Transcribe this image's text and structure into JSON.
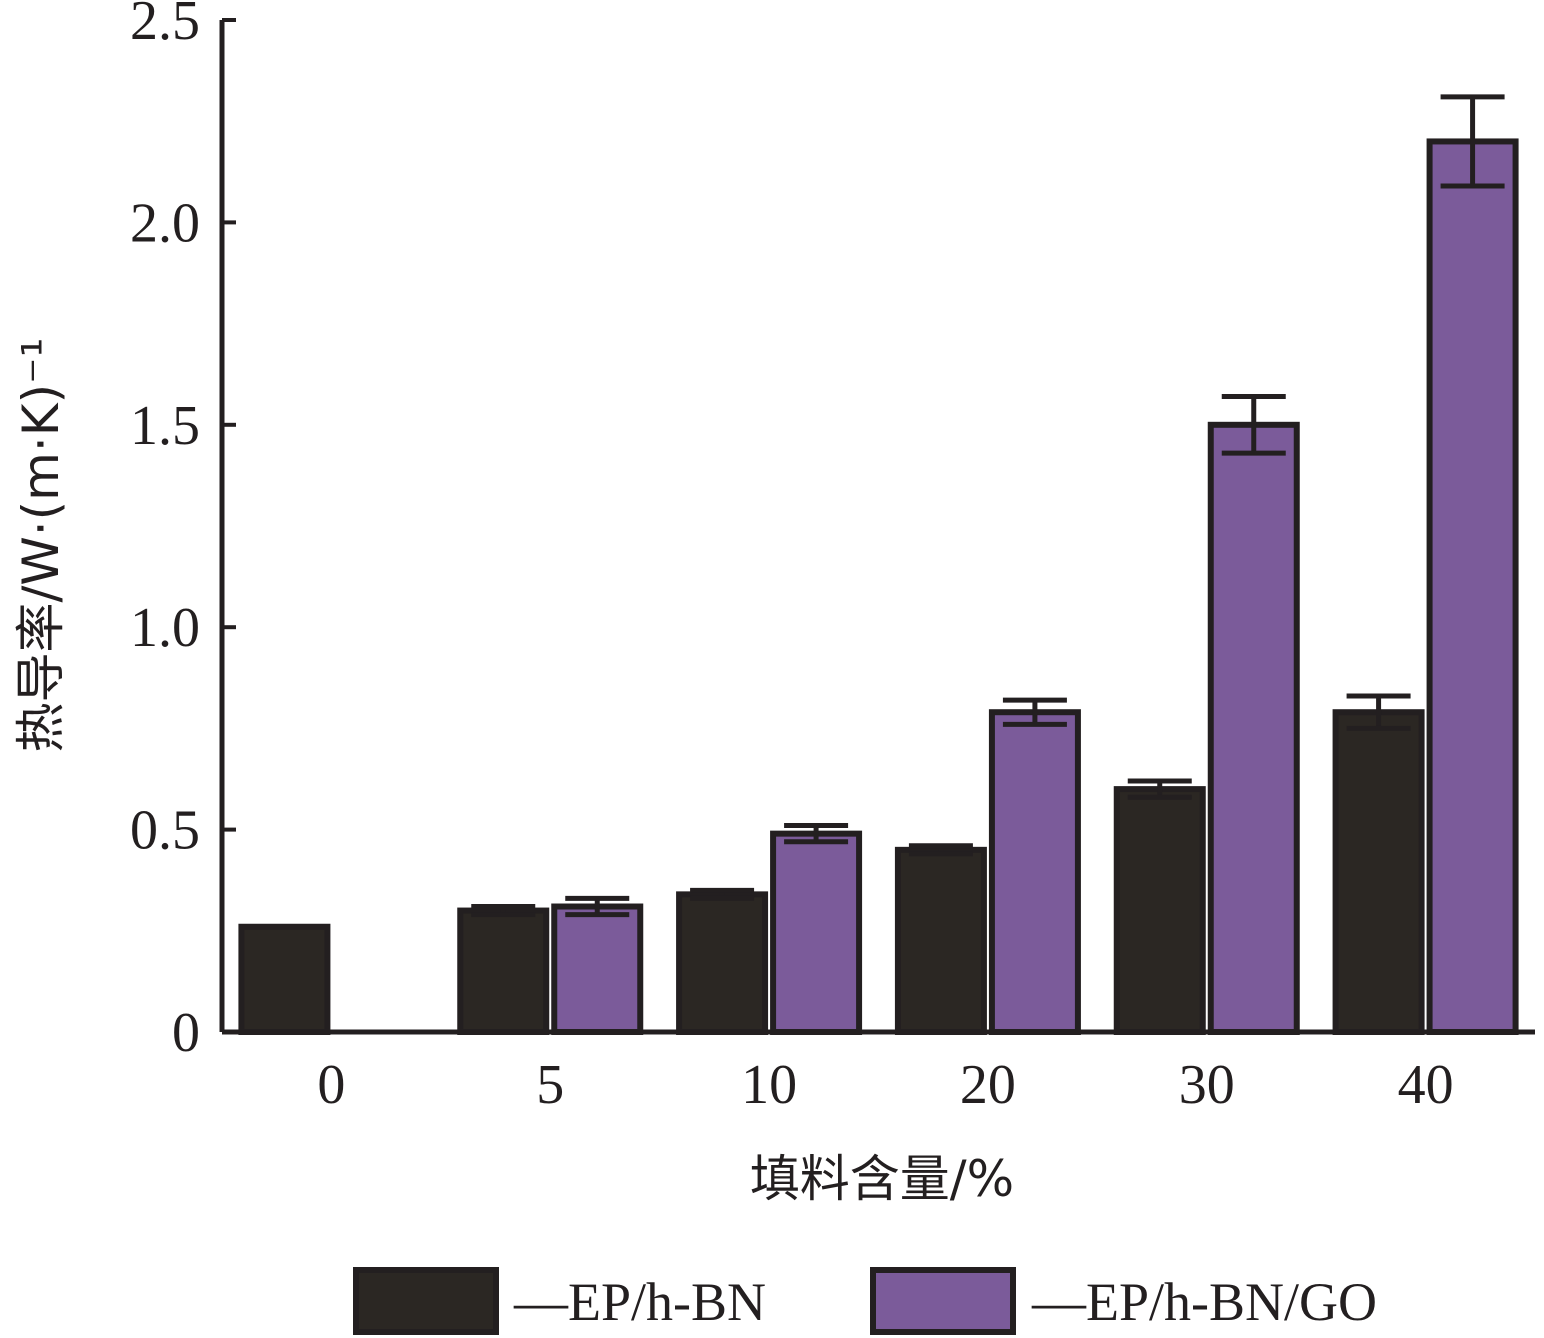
{
  "chart_data": {
    "type": "bar",
    "categories": [
      "0",
      "5",
      "10",
      "20",
      "30",
      "40"
    ],
    "series": [
      {
        "name": "—EP/h-BN",
        "color": "#2b2723",
        "values": [
          0.26,
          0.3,
          0.34,
          0.45,
          0.6,
          0.79
        ],
        "errors": [
          0.0,
          0.01,
          0.01,
          0.01,
          0.02,
          0.04
        ]
      },
      {
        "name": "—EP/h-BN/GO",
        "color": "#7b5b9a",
        "values": [
          0.0,
          0.31,
          0.49,
          0.79,
          1.5,
          2.2
        ],
        "errors": [
          0.0,
          0.02,
          0.02,
          0.03,
          0.07,
          0.11
        ]
      }
    ],
    "yticks": [
      "0",
      "0.5",
      "1.0",
      "1.5",
      "2.0",
      "2.5"
    ],
    "ylim": [
      0,
      2.5
    ],
    "xlabel": "填料含量/%",
    "ylabel": "热导率/W·(m·K)⁻¹",
    "legend_position": "bottom",
    "grid": false
  }
}
